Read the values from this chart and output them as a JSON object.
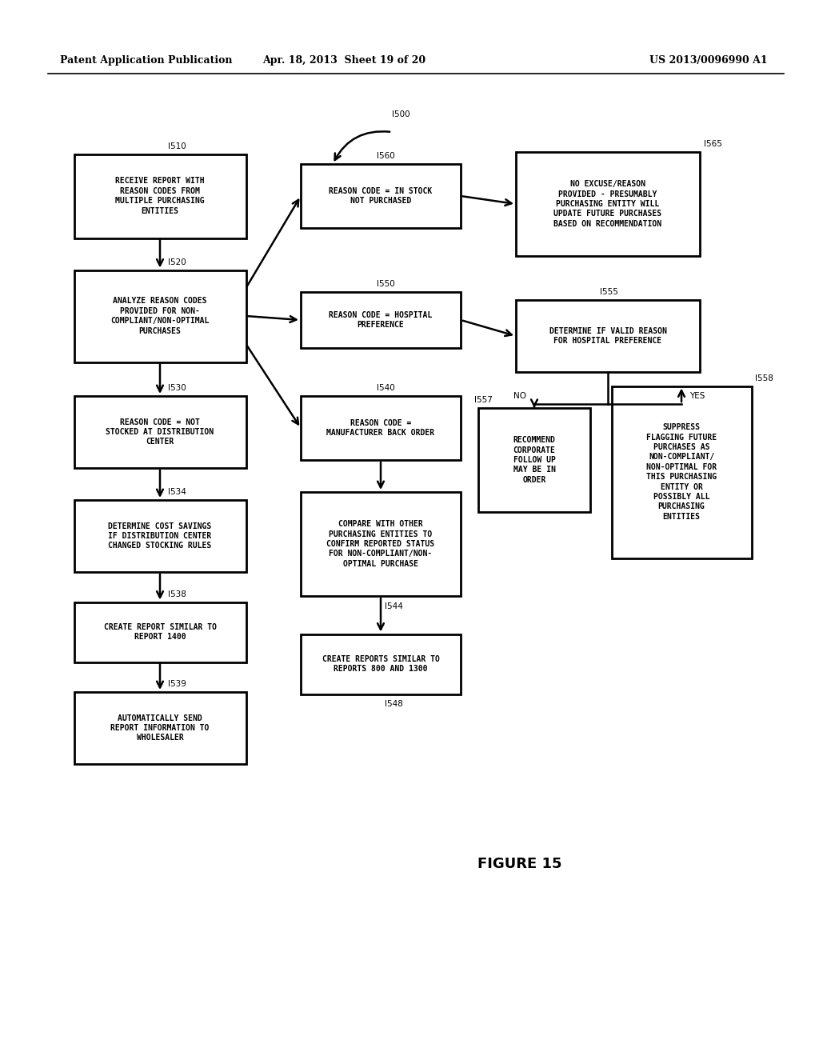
{
  "header_left": "Patent Application Publication",
  "header_mid": "Apr. 18, 2013  Sheet 19 of 20",
  "header_right": "US 2013/0096990 A1",
  "figure_label": "FIGURE 15",
  "bg_color": "#ffffff",
  "font_size_box": 7.0,
  "font_size_header": 9,
  "font_size_tag": 7.5,
  "font_size_figure": 13
}
